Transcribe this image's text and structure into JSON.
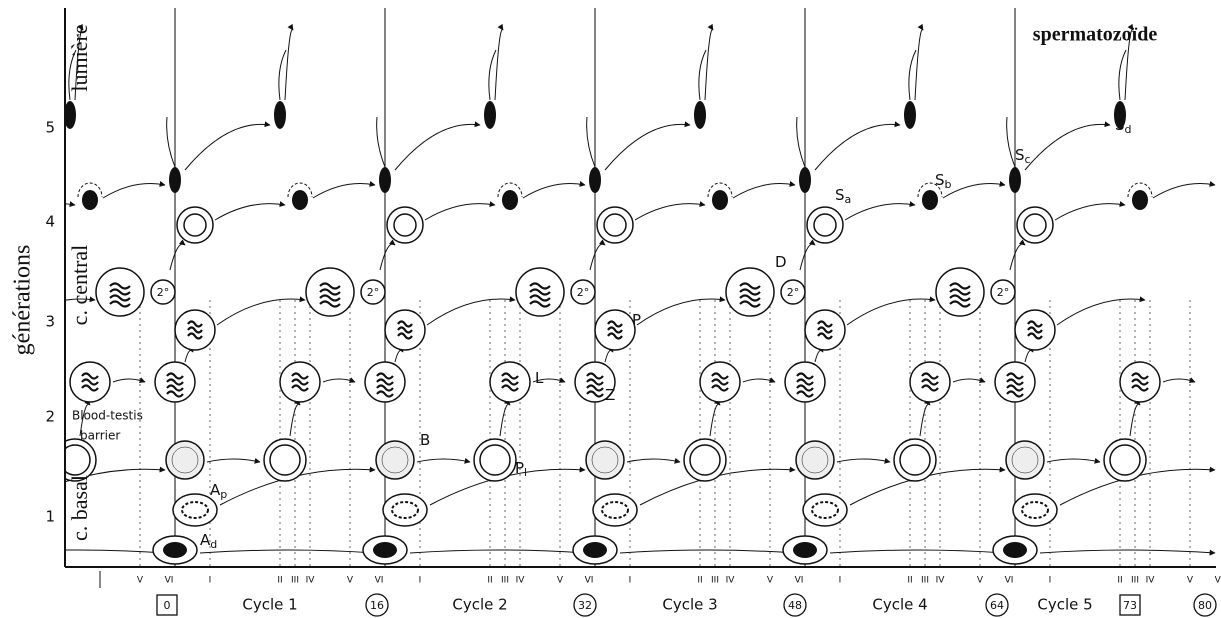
{
  "axis": {
    "title": "générations",
    "layers": [
      "lumière",
      "c. central",
      "c. basal"
    ],
    "generations": [
      "1",
      "2",
      "3",
      "4",
      "5"
    ]
  },
  "annotations": {
    "spermatozoon": "spermatozoïde",
    "barrier": [
      "Blood-testis",
      "barrier"
    ],
    "secondary": "2°"
  },
  "cell_labels": [
    {
      "main": "A",
      "sub": "p"
    },
    {
      "main": "A",
      "sub": "d"
    },
    {
      "main": "B",
      "sub": ""
    },
    {
      "main": "P",
      "sub": "l"
    },
    {
      "main": "L",
      "sub": ""
    },
    {
      "main": "Z",
      "sub": ""
    },
    {
      "main": "P",
      "sub": ""
    },
    {
      "main": "D",
      "sub": ""
    },
    {
      "main": "S",
      "sub": "a"
    },
    {
      "main": "S",
      "sub": "b"
    },
    {
      "main": "S",
      "sub": "c"
    },
    {
      "main": "S",
      "sub": "d"
    }
  ],
  "stage_axis": {
    "initial": [
      "V",
      "VI"
    ],
    "stages": [
      "I",
      "II",
      "III",
      "IV",
      "V",
      "VI"
    ]
  },
  "cycles": [
    "Cycle 1",
    "Cycle 2",
    "Cycle 3",
    "Cycle 4",
    "Cycle 5"
  ],
  "markers": [
    {
      "label": "0",
      "shape": "box"
    },
    {
      "label": "16",
      "shape": "circle"
    },
    {
      "label": "32",
      "shape": "circle"
    },
    {
      "label": "48",
      "shape": "circle"
    },
    {
      "label": "64",
      "shape": "circle"
    },
    {
      "label": "73",
      "shape": "box"
    },
    {
      "label": "80",
      "shape": "circle"
    }
  ]
}
